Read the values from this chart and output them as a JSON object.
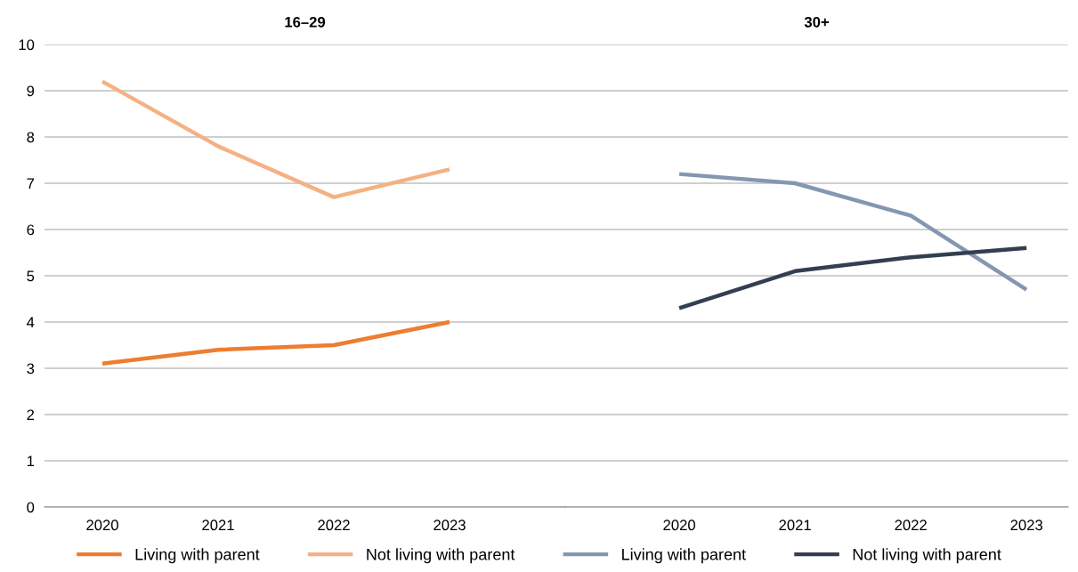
{
  "chart_data": [
    {
      "type": "line",
      "title": "16–29",
      "categories": [
        "2020",
        "2021",
        "2022",
        "2023"
      ],
      "ylim": [
        0,
        10
      ],
      "yticks": [
        0,
        1,
        2,
        3,
        4,
        5,
        6,
        7,
        8,
        9,
        10
      ],
      "grid": "y",
      "legend": "bottom",
      "series": [
        {
          "name": "Living with parent",
          "color": "#ed7d31",
          "values": [
            3.1,
            3.4,
            3.5,
            4.0
          ]
        },
        {
          "name": "Not living with parent",
          "color": "#f4b183",
          "values": [
            9.2,
            7.8,
            6.7,
            7.3
          ]
        }
      ]
    },
    {
      "type": "line",
      "title": "30+",
      "categories": [
        "2020",
        "2021",
        "2022",
        "2023"
      ],
      "ylim": [
        0,
        10
      ],
      "yticks": [
        0,
        1,
        2,
        3,
        4,
        5,
        6,
        7,
        8,
        9,
        10
      ],
      "grid": "y",
      "legend": "bottom",
      "tick_labels": "x",
      "series": [
        {
          "name": "Living with parent",
          "color": "#8497b0",
          "values": [
            7.2,
            7.0,
            6.3,
            4.7
          ]
        },
        {
          "name": "Not living with parent",
          "color": "#333f50",
          "values": [
            4.3,
            5.1,
            5.4,
            5.6
          ]
        }
      ]
    }
  ]
}
